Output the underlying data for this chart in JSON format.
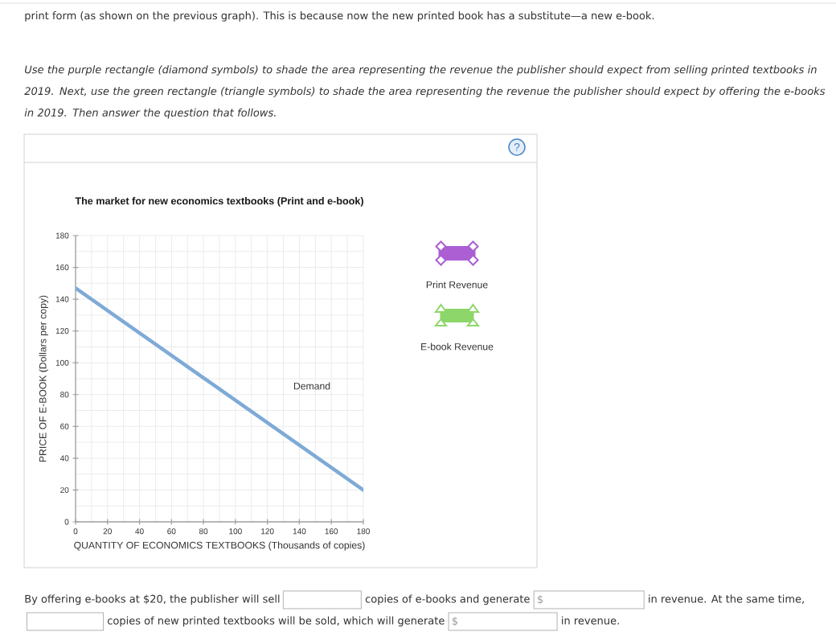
{
  "chart_data": {
    "type": "line",
    "title": "The market for new economics textbooks (Print and e-book)",
    "xlabel": "QUANTITY OF ECONOMICS TEXTBOOKS (Thousands of copies)",
    "ylabel": "PRICE OF E-BOOK (Dollars per copy)",
    "series": [
      {
        "x": [
          0,
          180
        ],
        "values": [
          147,
          20
        ],
        "color": "#7eaad6"
      }
    ],
    "xlim": [
      0,
      180
    ],
    "ylim": [
      0,
      180
    ],
    "xticks": [
      0,
      20,
      40,
      60,
      80,
      100,
      120,
      140,
      160,
      180
    ],
    "yticks": [
      0,
      20,
      40,
      60,
      80,
      100,
      120,
      140,
      160,
      180
    ],
    "grid": true,
    "annotations": [
      "print form (as shown on the previous graph). This is because now the new printed book has a substitute—a new e-book.",
      "Use the purple rectangle (diamond symbols) to shade the area representing the revenue the publisher should expect from selling printed textbooks in 2019. Next, use the green rectangle (triangle symbols) to shade the area representing the revenue the publisher should expect by offering the e-books in 2019. Then answer the question that follows.",
      "?",
      "Print Revenue",
      "E-book Revenue",
      "Demand",
      "By offering e-books at $20, the publisher will sell",
      "copies of e-books and generate",
      "$",
      "in revenue. At the same time,",
      "copies of new printed textbooks will be sold, which will generate",
      "$",
      "in revenue."
    ]
  }
}
